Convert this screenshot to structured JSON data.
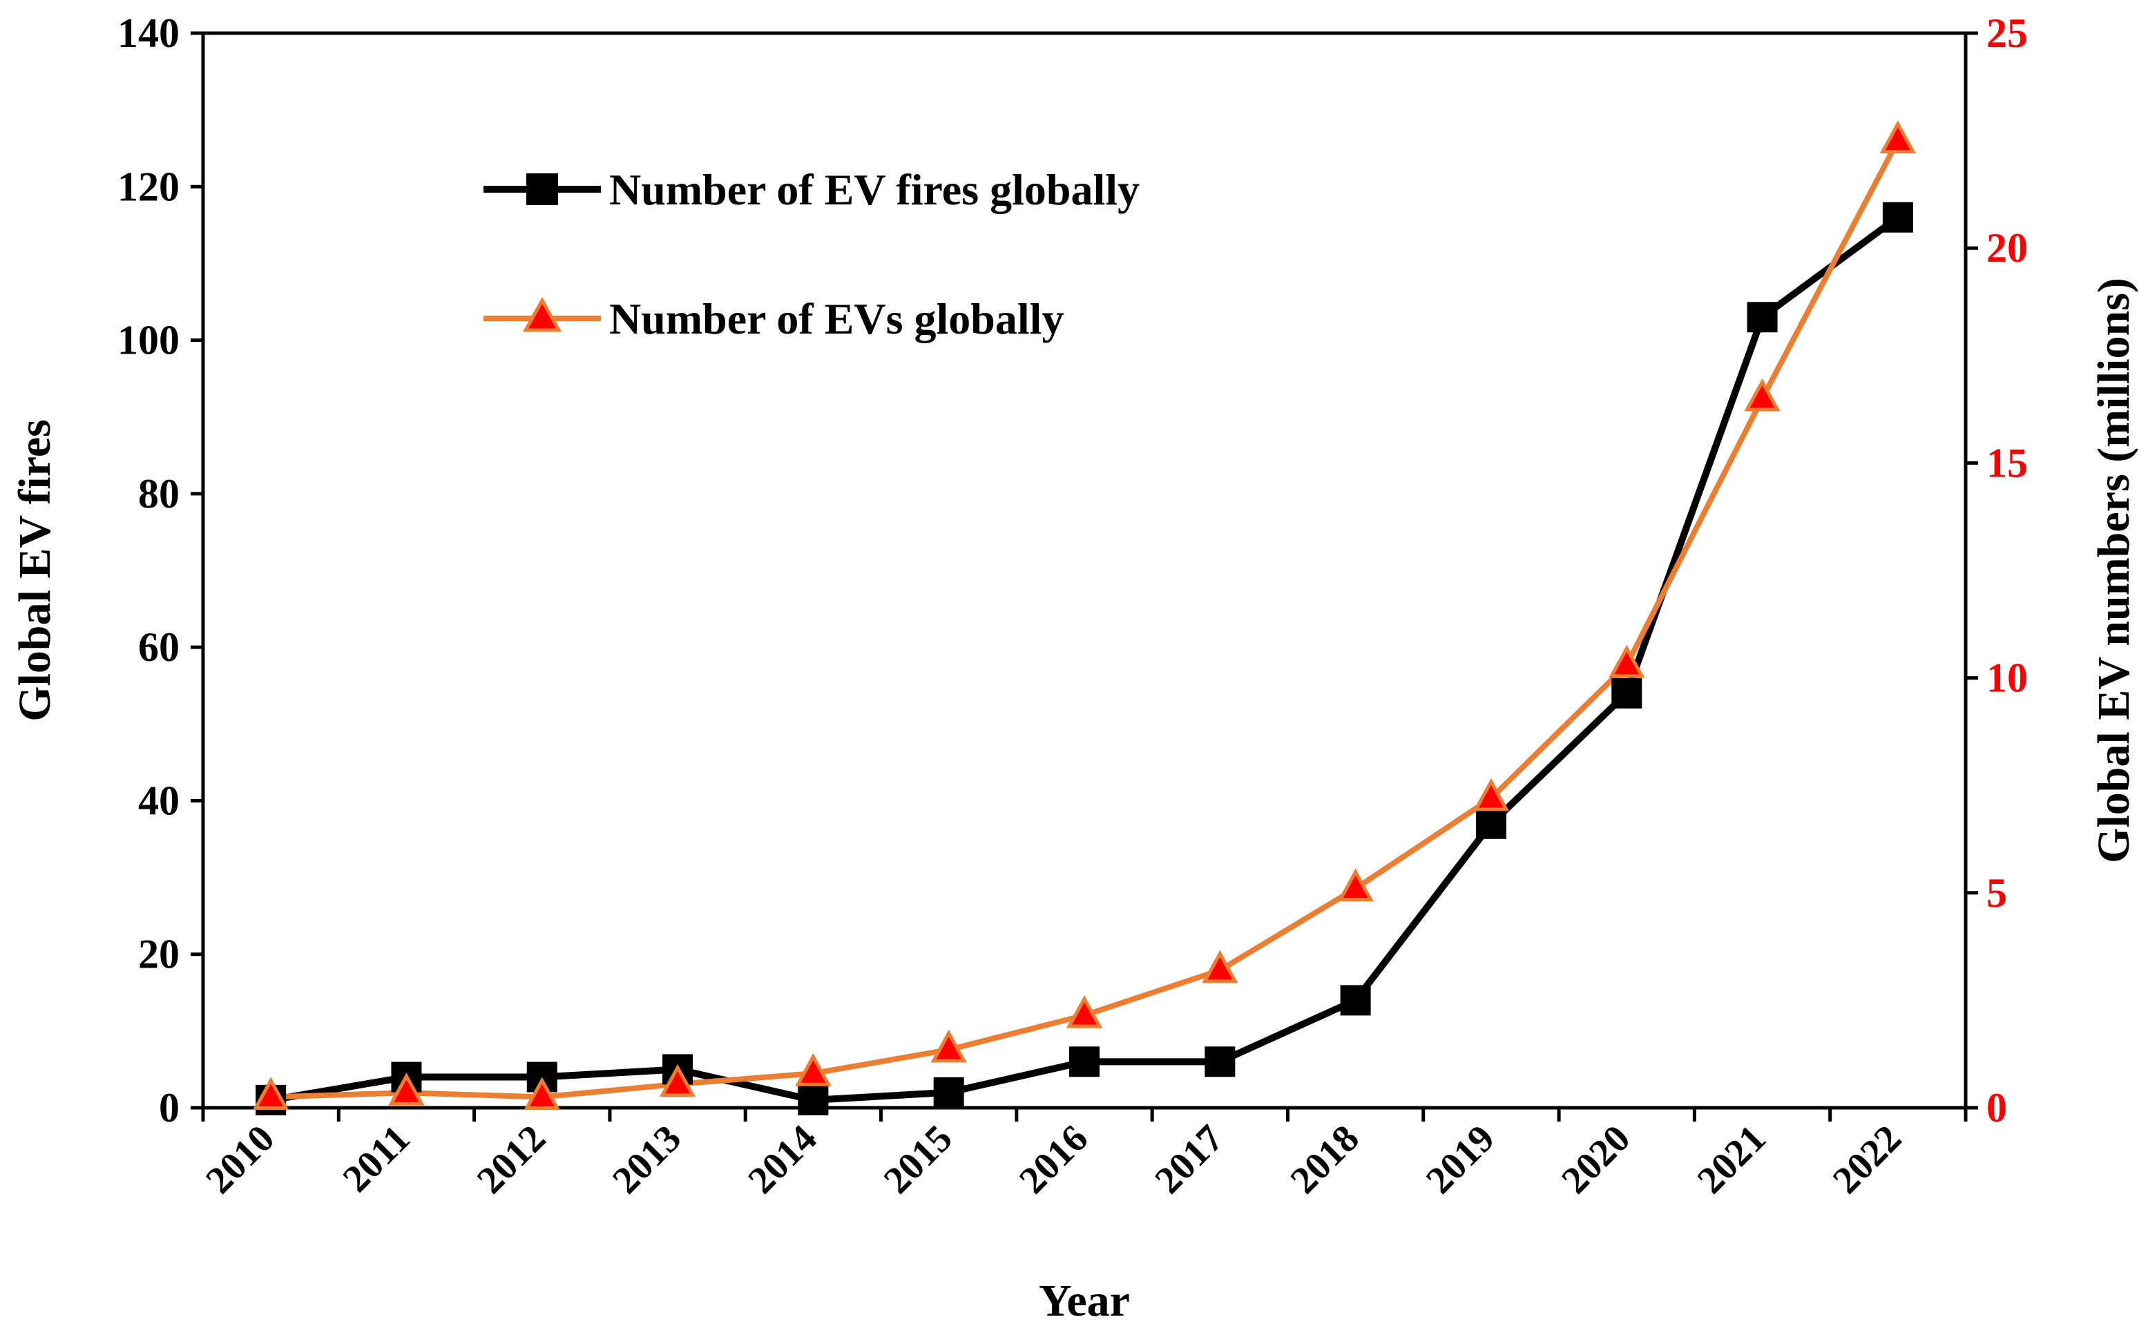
{
  "chart_data": {
    "type": "line",
    "title": "",
    "xlabel": "Year",
    "ylabel": "Global EV fires",
    "y2label": "Global EV numbers (millions)",
    "categories": [
      "2010",
      "2011",
      "2012",
      "2013",
      "2014",
      "2015",
      "2016",
      "2017",
      "2018",
      "2019",
      "2020",
      "2021",
      "2022"
    ],
    "ylim": [
      0,
      140
    ],
    "yticks": [
      "0",
      "20",
      "40",
      "60",
      "80",
      "100",
      "120",
      "140"
    ],
    "y2lim": [
      0,
      25
    ],
    "y2ticks": [
      "0",
      "5",
      "10",
      "15",
      "20",
      "25"
    ],
    "grid": false,
    "legend_position": "top-left",
    "series": [
      {
        "name": "Number of EV fires globally",
        "axis": "left",
        "marker": "square",
        "color": "#000000",
        "values": [
          1,
          4,
          4,
          5,
          1,
          2,
          6,
          6,
          14,
          37,
          54,
          103,
          116
        ]
      },
      {
        "name": "Number of EVs globally",
        "axis": "right",
        "marker": "triangle",
        "color": "#ed7d31",
        "marker_fill": "#ff0000",
        "values": [
          0.25,
          0.35,
          0.25,
          0.55,
          0.8,
          1.35,
          2.15,
          3.2,
          5.1,
          7.2,
          10.3,
          16.5,
          22.5
        ]
      }
    ]
  }
}
